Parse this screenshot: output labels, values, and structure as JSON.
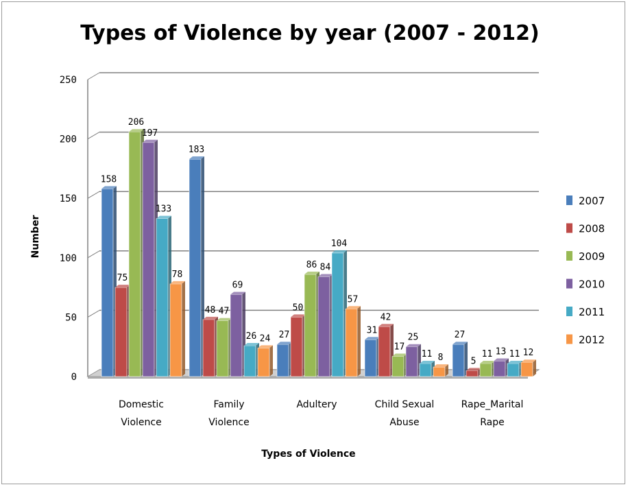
{
  "chart_data": {
    "type": "bar",
    "title": "Types of Violence by year (2007 - 2012)",
    "xlabel": "Types of Violence",
    "ylabel": "Number",
    "ylim": [
      0,
      250
    ],
    "yticks": [
      "0",
      "50",
      "100",
      "150",
      "200",
      "250"
    ],
    "grid": true,
    "legend_position": "right",
    "categories": [
      [
        "Domestic",
        "Violence"
      ],
      [
        "Family",
        "Violence"
      ],
      [
        "Adultery"
      ],
      [
        "Child Sexual",
        "Abuse"
      ],
      [
        "Rape_Marital",
        "Rape"
      ]
    ],
    "series": [
      {
        "name": "2007",
        "color": "#4a7ebb",
        "values": [
          158,
          183,
          27,
          31,
          27
        ]
      },
      {
        "name": "2008",
        "color": "#be4b48",
        "values": [
          75,
          48,
          50,
          42,
          5
        ]
      },
      {
        "name": "2009",
        "color": "#98b954",
        "values": [
          206,
          47,
          86,
          17,
          11
        ]
      },
      {
        "name": "2010",
        "color": "#7d60a0",
        "values": [
          197,
          69,
          84,
          25,
          13
        ]
      },
      {
        "name": "2011",
        "color": "#46aac5",
        "values": [
          133,
          26,
          104,
          11,
          11
        ]
      },
      {
        "name": "2012",
        "color": "#f79646",
        "values": [
          78,
          24,
          57,
          8,
          12
        ]
      }
    ]
  }
}
